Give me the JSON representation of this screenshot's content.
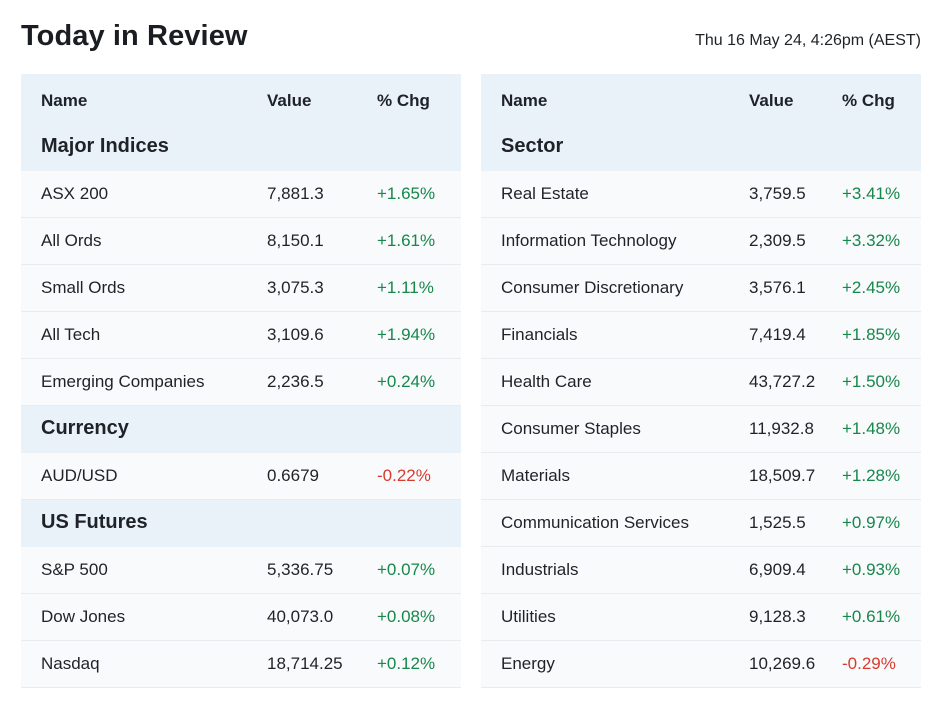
{
  "header": {
    "title": "Today in Review",
    "timestamp": "Thu 16 May 24, 4:26pm (AEST)"
  },
  "colors": {
    "positive": "#17874a",
    "negative": "#d93a2e",
    "section_bg": "#e9f1f9",
    "row_bg": "#f8fafc"
  },
  "left_table": {
    "columns": {
      "name": "Name",
      "value": "Value",
      "change": "% Chg"
    },
    "sections": [
      {
        "title": "Major Indices",
        "rows": [
          {
            "name": "ASX 200",
            "value": "7,881.3",
            "change": "+1.65%",
            "direction": "pos"
          },
          {
            "name": "All Ords",
            "value": "8,150.1",
            "change": "+1.61%",
            "direction": "pos"
          },
          {
            "name": "Small Ords",
            "value": "3,075.3",
            "change": "+1.11%",
            "direction": "pos"
          },
          {
            "name": "All Tech",
            "value": "3,109.6",
            "change": "+1.94%",
            "direction": "pos"
          },
          {
            "name": "Emerging Companies",
            "value": "2,236.5",
            "change": "+0.24%",
            "direction": "pos"
          }
        ]
      },
      {
        "title": "Currency",
        "rows": [
          {
            "name": "AUD/USD",
            "value": "0.6679",
            "change": "-0.22%",
            "direction": "neg"
          }
        ]
      },
      {
        "title": "US Futures",
        "rows": [
          {
            "name": "S&P 500",
            "value": "5,336.75",
            "change": "+0.07%",
            "direction": "pos"
          },
          {
            "name": "Dow Jones",
            "value": "40,073.0",
            "change": "+0.08%",
            "direction": "pos"
          },
          {
            "name": "Nasdaq",
            "value": "18,714.25",
            "change": "+0.12%",
            "direction": "pos"
          }
        ]
      }
    ]
  },
  "right_table": {
    "columns": {
      "name": "Name",
      "value": "Value",
      "change": "% Chg"
    },
    "sections": [
      {
        "title": "Sector",
        "rows": [
          {
            "name": "Real Estate",
            "value": "3,759.5",
            "change": "+3.41%",
            "direction": "pos"
          },
          {
            "name": "Information Technology",
            "value": "2,309.5",
            "change": "+3.32%",
            "direction": "pos"
          },
          {
            "name": "Consumer Discretionary",
            "value": "3,576.1",
            "change": "+2.45%",
            "direction": "pos"
          },
          {
            "name": "Financials",
            "value": "7,419.4",
            "change": "+1.85%",
            "direction": "pos"
          },
          {
            "name": "Health Care",
            "value": "43,727.2",
            "change": "+1.50%",
            "direction": "pos"
          },
          {
            "name": "Consumer Staples",
            "value": "11,932.8",
            "change": "+1.48%",
            "direction": "pos"
          },
          {
            "name": "Materials",
            "value": "18,509.7",
            "change": "+1.28%",
            "direction": "pos"
          },
          {
            "name": "Communication Services",
            "value": "1,525.5",
            "change": "+0.97%",
            "direction": "pos"
          },
          {
            "name": "Industrials",
            "value": "6,909.4",
            "change": "+0.93%",
            "direction": "pos"
          },
          {
            "name": "Utilities",
            "value": "9,128.3",
            "change": "+0.61%",
            "direction": "pos"
          },
          {
            "name": "Energy",
            "value": "10,269.6",
            "change": "-0.29%",
            "direction": "neg"
          }
        ]
      }
    ]
  }
}
